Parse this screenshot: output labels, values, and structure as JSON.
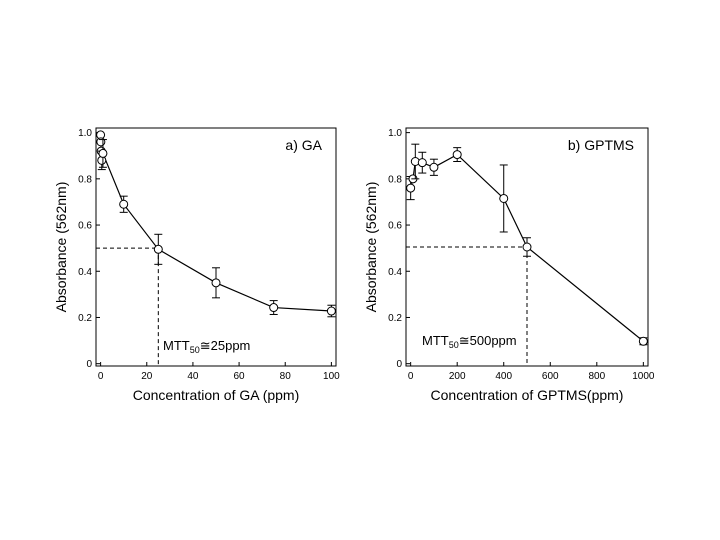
{
  "chart_data": [
    {
      "type": "line",
      "panel_title": "a) GA",
      "xlabel": "Concentration of GA (ppm)",
      "ylabel": "Absorbance (562nm)",
      "xlim": [
        -2,
        102
      ],
      "ylim": [
        -0.01,
        1.02
      ],
      "xticks": [
        0,
        20,
        40,
        60,
        80,
        100
      ],
      "yticks": [
        0,
        0.2,
        0.4,
        0.6,
        0.8,
        1.0
      ],
      "ytick_labels": [
        "0",
        "0.2",
        "0.4",
        "0.6",
        "0.8",
        "1.0"
      ],
      "xtick_labels": [
        "0",
        "20",
        "40",
        "60",
        "80",
        "100"
      ],
      "marker": "open-circle",
      "grid": false,
      "points": [
        {
          "x": 0,
          "y": 0.99,
          "err": 0.0
        },
        {
          "x": 0.1,
          "y": 0.96,
          "err": 0.0
        },
        {
          "x": 0.25,
          "y": 0.92,
          "err": 0.0
        },
        {
          "x": 0.5,
          "y": 0.88,
          "err": 0.04
        },
        {
          "x": 1,
          "y": 0.91,
          "err": 0.06
        },
        {
          "x": 10,
          "y": 0.69,
          "err": 0.035
        },
        {
          "x": 25,
          "y": 0.495,
          "err": 0.065
        },
        {
          "x": 50,
          "y": 0.35,
          "err": 0.065
        },
        {
          "x": 75,
          "y": 0.243,
          "err": 0.03
        },
        {
          "x": 100,
          "y": 0.228,
          "err": 0.025
        }
      ],
      "reference_line": {
        "x": 25,
        "y": 0.5
      },
      "annotation": {
        "text": "MTT",
        "sub": "50",
        "suffix": "≅25ppm"
      }
    },
    {
      "type": "line",
      "panel_title": "b) GPTMS",
      "xlabel": "Concentration of GPTMS(ppm)",
      "ylabel": "Absorbance (562nm)",
      "xlim": [
        -20,
        1020
      ],
      "ylim": [
        -0.01,
        1.02
      ],
      "xticks": [
        0,
        200,
        400,
        600,
        800,
        1000
      ],
      "yticks": [
        0,
        0.2,
        0.4,
        0.6,
        0.8,
        1.0
      ],
      "ytick_labels": [
        "0",
        "0.2",
        "0.4",
        "0.6",
        "0.8",
        "1.0"
      ],
      "xtick_labels": [
        "0",
        "200",
        "400",
        "600",
        "800",
        "1000"
      ],
      "marker": "open-circle",
      "grid": false,
      "points": [
        {
          "x": 0,
          "y": 0.76,
          "err": 0.05
        },
        {
          "x": 10,
          "y": 0.8,
          "err": 0.0
        },
        {
          "x": 20,
          "y": 0.875,
          "err": 0.075
        },
        {
          "x": 50,
          "y": 0.87,
          "err": 0.045
        },
        {
          "x": 100,
          "y": 0.85,
          "err": 0.035
        },
        {
          "x": 200,
          "y": 0.905,
          "err": 0.03
        },
        {
          "x": 400,
          "y": 0.715,
          "err": 0.145
        },
        {
          "x": 500,
          "y": 0.505,
          "err": 0.04
        },
        {
          "x": 1000,
          "y": 0.097,
          "err": 0.015
        }
      ],
      "reference_line": {
        "x": 500,
        "y": 0.505
      },
      "annotation": {
        "text": "MTT",
        "sub": "50",
        "suffix": "≅500ppm"
      }
    }
  ]
}
